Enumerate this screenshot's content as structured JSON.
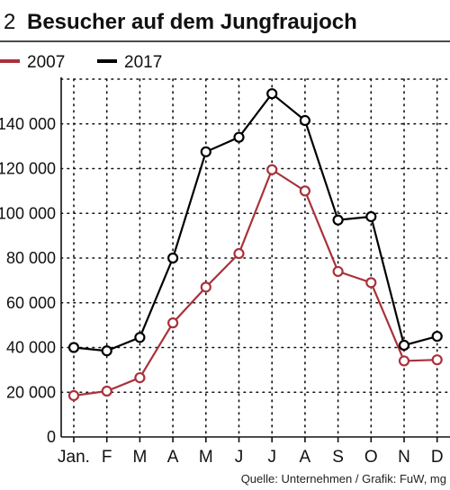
{
  "header": {
    "number": "2",
    "title": "Besucher auf dem Jungfraujoch"
  },
  "footer": {
    "source": "Quelle: Unternehmen / Grafik: FuW, mg"
  },
  "chart_data": {
    "type": "line",
    "title": "Besucher auf dem Jungfraujoch",
    "xlabel": "",
    "ylabel": "",
    "categories": [
      "Jan.",
      "F",
      "M",
      "A",
      "M",
      "J",
      "J",
      "A",
      "S",
      "O",
      "N",
      "D"
    ],
    "ylim": [
      0,
      160000
    ],
    "y_ticks": [
      0,
      20000,
      40000,
      60000,
      80000,
      100000,
      120000,
      140000
    ],
    "y_tick_labels": [
      "0",
      "20 000",
      "40 000",
      "60 000",
      "80 000",
      "100 000",
      "120 000",
      "140 000"
    ],
    "grid": true,
    "legend_position": "top-left",
    "series": [
      {
        "name": "2007",
        "color": "#a8323a",
        "values": [
          18500,
          20500,
          26500,
          51000,
          67000,
          82000,
          119500,
          110000,
          74000,
          69000,
          34000,
          34500
        ]
      },
      {
        "name": "2017",
        "color": "#000000",
        "values": [
          40000,
          38500,
          44500,
          80000,
          127500,
          134000,
          153500,
          141500,
          97000,
          98500,
          41000,
          45000
        ]
      }
    ]
  }
}
